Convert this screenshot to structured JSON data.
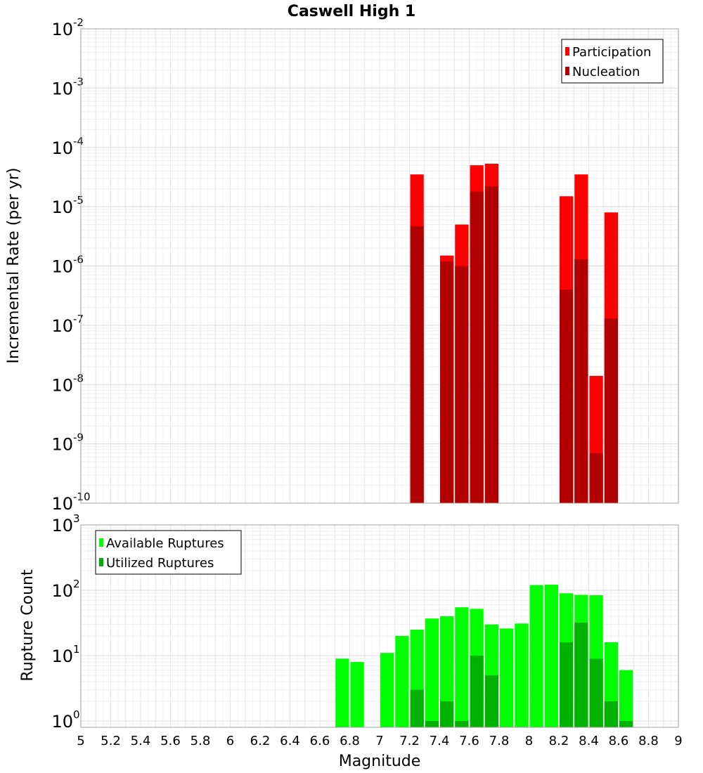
{
  "chart_data": [
    {
      "type": "bar",
      "title": "Caswell High 1",
      "xlabel": "",
      "ylabel": "Incremental Rate (per yr)",
      "yscale": "log",
      "ylim": [
        1e-10,
        0.01
      ],
      "xlim": [
        5,
        9
      ],
      "ytick_labels": [
        {
          "base": "10",
          "exp": "-10"
        },
        {
          "base": "10",
          "exp": "-9"
        },
        {
          "base": "10",
          "exp": "-8"
        },
        {
          "base": "10",
          "exp": "-7"
        },
        {
          "base": "10",
          "exp": "-6"
        },
        {
          "base": "10",
          "exp": "-5"
        },
        {
          "base": "10",
          "exp": "-4"
        },
        {
          "base": "10",
          "exp": "-3"
        },
        {
          "base": "10",
          "exp": "-2"
        }
      ],
      "grid": true,
      "legend_position": "top-right",
      "series": [
        {
          "name": "Participation",
          "color": "#ff0000",
          "x": [
            7.25,
            7.45,
            7.55,
            7.65,
            7.75,
            8.25,
            8.35,
            8.45,
            8.55
          ],
          "values": [
            3.5e-05,
            1.5e-06,
            5e-06,
            5e-05,
            5.3e-05,
            1.5e-05,
            3.5e-05,
            1.4e-08,
            8e-06
          ]
        },
        {
          "name": "Nucleation",
          "color": "#b20000",
          "x": [
            7.25,
            7.45,
            7.55,
            7.65,
            7.75,
            8.25,
            8.35,
            8.45,
            8.55
          ],
          "values": [
            4.7e-06,
            1.2e-06,
            1e-06,
            1.8e-05,
            2.2e-05,
            4e-07,
            1.3e-06,
            7e-10,
            1.3e-07
          ]
        }
      ]
    },
    {
      "type": "bar",
      "title": "",
      "xlabel": "Magnitude",
      "ylabel": "Rupture Count",
      "yscale": "log",
      "ylim": [
        0.8,
        1000
      ],
      "xlim": [
        5,
        9
      ],
      "xtick_labels": [
        "5",
        "5.2",
        "5.4",
        "5.6",
        "5.8",
        "6",
        "6.2",
        "6.4",
        "6.6",
        "6.8",
        "7",
        "7.2",
        "7.4",
        "7.6",
        "7.8",
        "8",
        "8.2",
        "8.4",
        "8.6",
        "8.8",
        "9"
      ],
      "ytick_labels": [
        {
          "base": "10",
          "exp": "0"
        },
        {
          "base": "10",
          "exp": "1"
        },
        {
          "base": "10",
          "exp": "2"
        },
        {
          "base": "10",
          "exp": "3"
        }
      ],
      "grid": true,
      "legend_position": "top-left",
      "series": [
        {
          "name": "Available Ruptures",
          "color": "#00ff00",
          "x": [
            6.75,
            6.85,
            7.05,
            7.15,
            7.25,
            7.35,
            7.45,
            7.55,
            7.65,
            7.75,
            7.85,
            7.95,
            8.05,
            8.15,
            8.25,
            8.35,
            8.45,
            8.55,
            8.65
          ],
          "values": [
            9,
            8,
            11,
            20,
            25,
            37,
            40,
            55,
            52,
            30,
            26,
            31,
            120,
            122,
            90,
            85,
            84,
            16,
            6
          ]
        },
        {
          "name": "Utilized Ruptures",
          "color": "#00b200",
          "x": [
            7.25,
            7.35,
            7.45,
            7.55,
            7.65,
            7.75,
            8.25,
            8.35,
            8.45,
            8.55,
            8.65
          ],
          "values": [
            3,
            1,
            2,
            1,
            10,
            5,
            16,
            32,
            9,
            2,
            1
          ]
        }
      ]
    }
  ]
}
